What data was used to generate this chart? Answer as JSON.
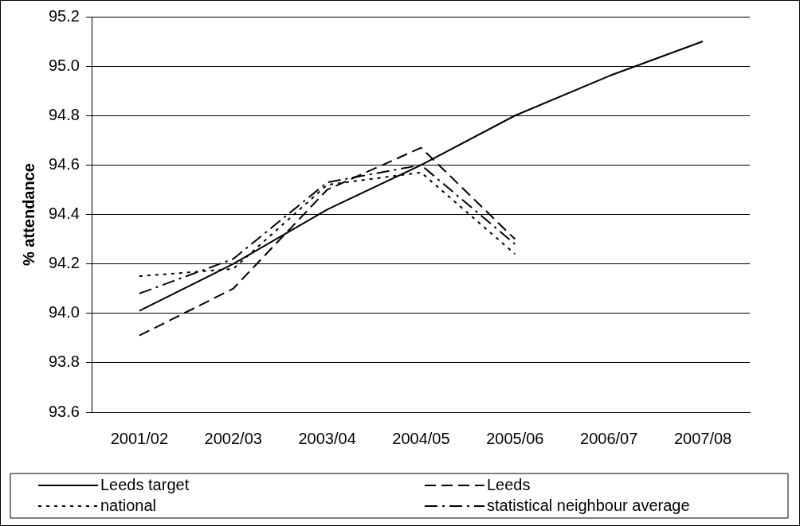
{
  "chart_data": {
    "type": "line",
    "ylabel": "% attendance",
    "categories": [
      "2001/02",
      "2002/03",
      "2003/04",
      "2004/05",
      "2005/06",
      "2006/07",
      "2007/08"
    ],
    "series": [
      {
        "name": "Leeds target",
        "color": "#000000",
        "line_style": "solid",
        "values": [
          94.01,
          94.2,
          94.42,
          94.6,
          94.8,
          94.96,
          95.1
        ]
      },
      {
        "name": "Leeds",
        "color": "#000000",
        "line_style": "dashed",
        "values": [
          93.91,
          94.1,
          94.5,
          94.67,
          94.3,
          null,
          null
        ]
      },
      {
        "name": "national",
        "color": "#000000",
        "line_style": "dotted",
        "values": [
          94.15,
          94.18,
          94.52,
          94.57,
          94.24,
          null,
          null
        ]
      },
      {
        "name": "statistical neighbour average",
        "color": "#000000",
        "line_style": "dashdot",
        "values": [
          94.08,
          94.22,
          94.53,
          94.6,
          94.28,
          null,
          null
        ]
      }
    ],
    "ylim": [
      93.6,
      95.2
    ],
    "yticks": [
      93.6,
      93.8,
      {
        "value": 94,
        "label": "94.0"
      },
      94.2,
      94.4,
      94.6,
      94.8,
      {
        "value": 95,
        "label": "95.0"
      },
      95.2
    ],
    "grid": "y",
    "legend": "bottom",
    "marker": "none"
  }
}
